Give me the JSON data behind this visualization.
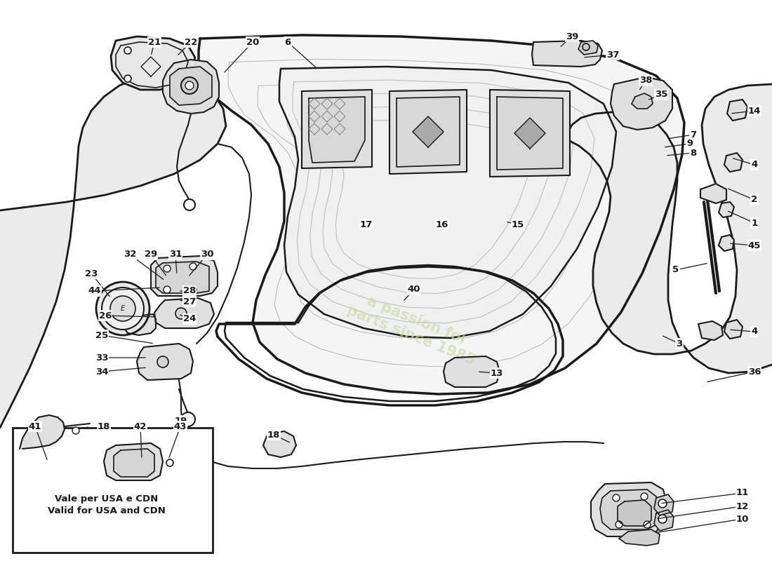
{
  "background_color": "#ffffff",
  "line_color": "#1a1a1a",
  "watermark_color": "#c8dba8",
  "box_text_line1": "Vale per USA e CDN",
  "box_text_line2": "Valid for USA and CDN",
  "figsize": [
    11.0,
    8.0
  ],
  "dpi": 100,
  "labels": [
    [
      "1",
      1072,
      318
    ],
    [
      "2",
      1072,
      285
    ],
    [
      "3",
      965,
      490
    ],
    [
      "4",
      1072,
      238
    ],
    [
      "4",
      1072,
      473
    ],
    [
      "5",
      960,
      388
    ],
    [
      "6",
      408,
      62
    ],
    [
      "7",
      985,
      193
    ],
    [
      "8",
      985,
      218
    ],
    [
      "9",
      980,
      205
    ],
    [
      "10",
      1055,
      737
    ],
    [
      "11",
      1055,
      705
    ],
    [
      "12",
      1055,
      722
    ],
    [
      "13",
      705,
      535
    ],
    [
      "14",
      1072,
      160
    ],
    [
      "15",
      735,
      322
    ],
    [
      "16",
      628,
      322
    ],
    [
      "17",
      520,
      322
    ],
    [
      "18",
      388,
      620
    ],
    [
      "19",
      255,
      603
    ],
    [
      "20",
      358,
      62
    ],
    [
      "21",
      218,
      62
    ],
    [
      "22",
      270,
      62
    ],
    [
      "23",
      128,
      392
    ],
    [
      "24",
      268,
      455
    ],
    [
      "25",
      143,
      478
    ],
    [
      "26",
      148,
      450
    ],
    [
      "27",
      268,
      432
    ],
    [
      "28",
      268,
      417
    ],
    [
      "29",
      213,
      365
    ],
    [
      "30",
      293,
      365
    ],
    [
      "31",
      248,
      365
    ],
    [
      "32",
      183,
      365
    ],
    [
      "33",
      143,
      513
    ],
    [
      "34",
      143,
      533
    ],
    [
      "35",
      940,
      138
    ],
    [
      "36",
      1072,
      532
    ],
    [
      "37",
      870,
      80
    ],
    [
      "38",
      918,
      118
    ],
    [
      "39",
      813,
      55
    ],
    [
      "40",
      588,
      415
    ],
    [
      "41",
      48,
      608
    ],
    [
      "42",
      198,
      608
    ],
    [
      "43",
      255,
      608
    ],
    [
      "44",
      133,
      418
    ],
    [
      "45",
      1072,
      350
    ]
  ],
  "label_pointers": [
    [
      "1",
      1072,
      318,
      1030,
      302
    ],
    [
      "2",
      1072,
      285,
      1030,
      268
    ],
    [
      "3",
      965,
      490,
      942,
      482
    ],
    [
      "4",
      1072,
      238,
      1038,
      228
    ],
    [
      "4",
      1072,
      473,
      1030,
      473
    ],
    [
      "5",
      960,
      388,
      1008,
      378
    ],
    [
      "6",
      408,
      62,
      450,
      100
    ],
    [
      "7",
      985,
      193,
      955,
      198
    ],
    [
      "8",
      985,
      218,
      948,
      222
    ],
    [
      "9",
      980,
      205,
      945,
      208
    ],
    [
      "10",
      1055,
      737,
      928,
      757
    ],
    [
      "11",
      1055,
      705,
      940,
      720
    ],
    [
      "12",
      1055,
      722,
      932,
      740
    ],
    [
      "13",
      705,
      535,
      680,
      533
    ],
    [
      "14",
      1072,
      160,
      1038,
      165
    ],
    [
      "15",
      735,
      322,
      718,
      318
    ],
    [
      "16",
      628,
      322,
      615,
      318
    ],
    [
      "17",
      520,
      322,
      510,
      318
    ],
    [
      "18",
      388,
      620,
      415,
      632
    ],
    [
      "19",
      255,
      603,
      252,
      610
    ],
    [
      "20",
      358,
      62,
      318,
      108
    ],
    [
      "21",
      218,
      62,
      212,
      82
    ],
    [
      "22",
      270,
      62,
      252,
      82
    ],
    [
      "23",
      128,
      392,
      160,
      425
    ],
    [
      "24",
      268,
      455,
      252,
      448
    ],
    [
      "25",
      143,
      478,
      218,
      490
    ],
    [
      "26",
      148,
      450,
      222,
      452
    ],
    [
      "27",
      268,
      432,
      252,
      425
    ],
    [
      "28",
      268,
      417,
      252,
      412
    ],
    [
      "29",
      213,
      365,
      238,
      398
    ],
    [
      "30",
      293,
      365,
      268,
      398
    ],
    [
      "31",
      248,
      365,
      252,
      395
    ],
    [
      "32",
      183,
      365,
      235,
      403
    ],
    [
      "33",
      143,
      513,
      212,
      510
    ],
    [
      "34",
      143,
      533,
      212,
      525
    ],
    [
      "35",
      940,
      138,
      922,
      145
    ],
    [
      "36",
      1072,
      532,
      1005,
      548
    ],
    [
      "37",
      870,
      80,
      828,
      85
    ],
    [
      "38",
      918,
      118,
      908,
      132
    ],
    [
      "39",
      813,
      55,
      795,
      70
    ],
    [
      "40",
      588,
      415,
      572,
      432
    ],
    [
      "41",
      48,
      648,
      65,
      668
    ],
    [
      "42",
      198,
      648,
      202,
      655
    ],
    [
      "43",
      255,
      648,
      242,
      655
    ],
    [
      "44",
      133,
      418,
      228,
      412
    ],
    [
      "45",
      1072,
      350,
      1035,
      348
    ]
  ]
}
